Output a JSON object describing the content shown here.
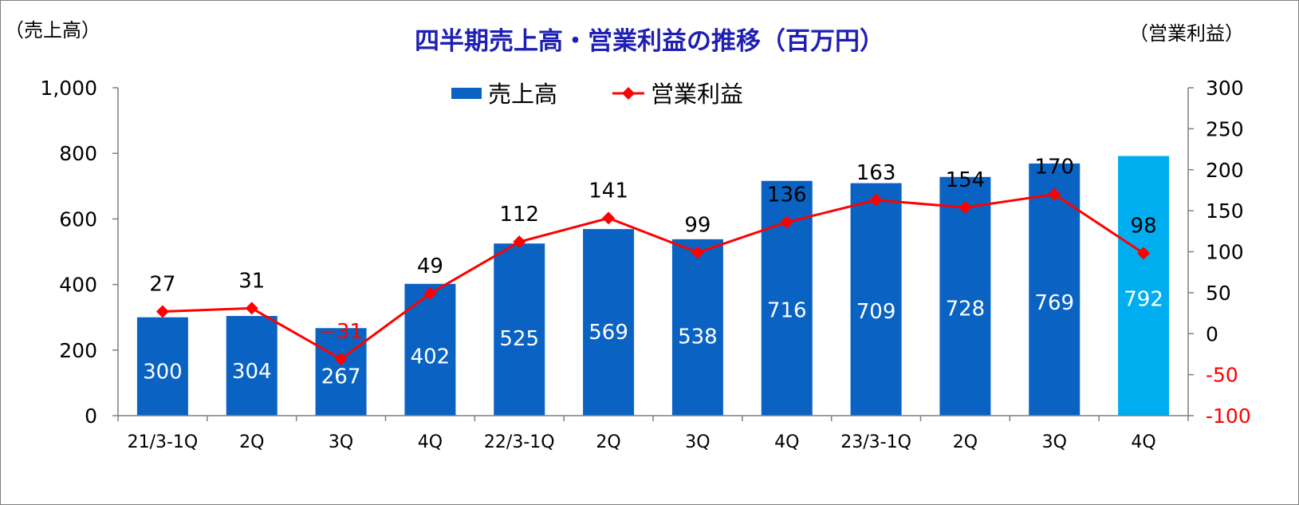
{
  "chart_data": {
    "type": "bar+line",
    "title": "四半期売上高・営業利益の推移（百万円）",
    "ylabel_left": "（売上高）",
    "ylabel_right": "（営業利益）",
    "categories": [
      "21/3-1Q",
      "2Q",
      "3Q",
      "4Q",
      "22/3-1Q",
      "2Q",
      "3Q",
      "4Q",
      "23/3-1Q",
      "2Q",
      "3Q",
      "4Q"
    ],
    "series": [
      {
        "name": "売上高",
        "type": "bar",
        "axis": "left",
        "color": "#0a63c2",
        "highlight_color": "#00aeef",
        "values": [
          300,
          304,
          267,
          402,
          525,
          569,
          538,
          716,
          709,
          728,
          769,
          792
        ]
      },
      {
        "name": "営業利益",
        "type": "line",
        "axis": "right",
        "color": "#ff0000",
        "marker": "diamond",
        "values": [
          27,
          31,
          -31,
          49,
          112,
          141,
          99,
          136,
          163,
          154,
          170,
          98
        ]
      }
    ],
    "left_axis": {
      "range": [
        0,
        1000
      ],
      "ticks": [
        "0",
        "200",
        "400",
        "600",
        "800",
        "1,000"
      ]
    },
    "right_axis": {
      "range": [
        -100,
        300
      ],
      "ticks": [
        "-100",
        "-50",
        "0",
        "50",
        "100",
        "150",
        "200",
        "250",
        "300"
      ]
    },
    "legend_position": "top-center",
    "grid": false
  }
}
